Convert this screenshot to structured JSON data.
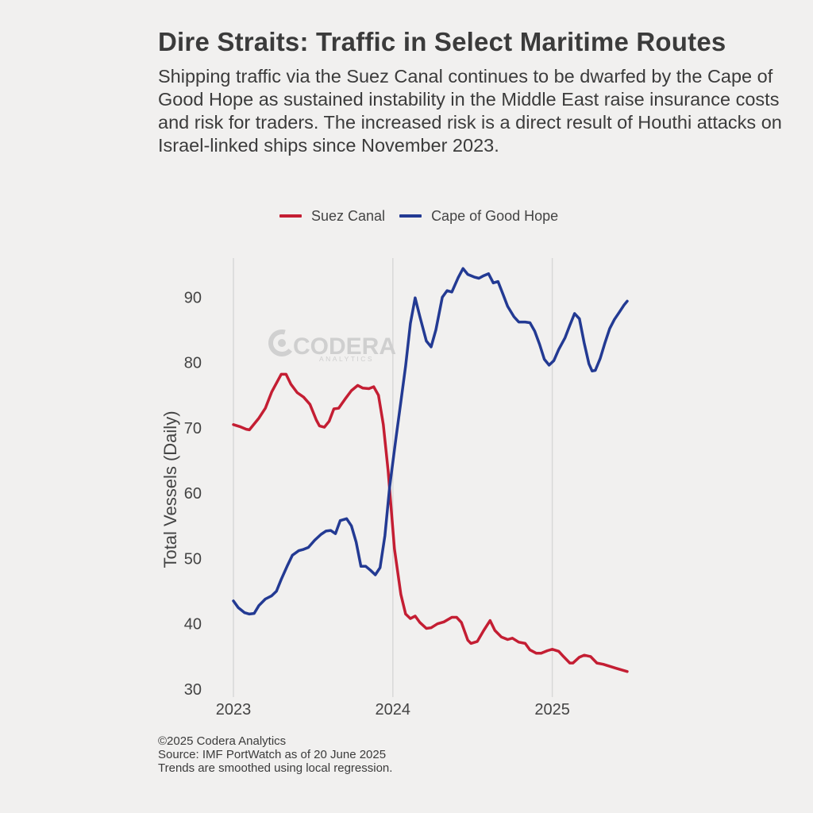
{
  "header": {
    "title": "Dire Straits: Traffic in Select Maritime Routes",
    "subtitle": "Shipping traffic via the Suez Canal continues to be dwarfed by the Cape of Good Hope as sustained instability in the Middle East raise insurance costs and risk for traders. The increased risk is a direct result of Houthi attacks on Israel-linked ships since November 2023."
  },
  "footer": {
    "line1": "©2025 Codera Analytics",
    "line2": "Source: IMF PortWatch as of 20 June 2025",
    "line3": "Trends are smoothed using local regression."
  },
  "watermark": {
    "name": "CODERA",
    "sub": "ANALYTICS",
    "icon": "codera-logo-icon"
  },
  "chart_data": {
    "type": "line",
    "title": "Dire Straits: Traffic in Select Maritime Routes",
    "xlabel": "",
    "ylabel": "Total Vessels (Daily)",
    "xlim": [
      2023,
      2025.47
    ],
    "ylim": [
      30,
      96
    ],
    "xticks": [
      2023,
      2024,
      2025
    ],
    "xtick_labels": [
      "2023",
      "2024",
      "2025"
    ],
    "yticks": [
      30,
      40,
      50,
      60,
      70,
      80,
      90
    ],
    "ytick_labels": [
      "30",
      "40",
      "50",
      "60",
      "70",
      "80",
      "90"
    ],
    "grid": "vertical at year ticks",
    "legend_position": "top-center",
    "series": [
      {
        "name": "Suez Canal",
        "color": "#c41e33",
        "points": [
          [
            2023.0,
            70.5
          ],
          [
            2023.04,
            70.2
          ],
          [
            2023.08,
            69.8
          ],
          [
            2023.1,
            69.7
          ],
          [
            2023.13,
            70.6
          ],
          [
            2023.16,
            71.5
          ],
          [
            2023.2,
            73.0
          ],
          [
            2023.24,
            75.5
          ],
          [
            2023.3,
            78.2
          ],
          [
            2023.33,
            78.2
          ],
          [
            2023.36,
            76.7
          ],
          [
            2023.4,
            75.4
          ],
          [
            2023.44,
            74.7
          ],
          [
            2023.48,
            73.6
          ],
          [
            2023.52,
            71.2
          ],
          [
            2023.54,
            70.3
          ],
          [
            2023.57,
            70.1
          ],
          [
            2023.6,
            71.0
          ],
          [
            2023.63,
            72.9
          ],
          [
            2023.66,
            73.0
          ],
          [
            2023.7,
            74.4
          ],
          [
            2023.74,
            75.7
          ],
          [
            2023.78,
            76.5
          ],
          [
            2023.81,
            76.1
          ],
          [
            2023.85,
            76.0
          ],
          [
            2023.88,
            76.3
          ],
          [
            2023.91,
            75.0
          ],
          [
            2023.94,
            70.5
          ],
          [
            2023.97,
            63.5
          ],
          [
            2024.01,
            51.5
          ],
          [
            2024.05,
            44.5
          ],
          [
            2024.08,
            41.5
          ],
          [
            2024.11,
            40.8
          ],
          [
            2024.14,
            41.2
          ],
          [
            2024.17,
            40.2
          ],
          [
            2024.21,
            39.3
          ],
          [
            2024.24,
            39.4
          ],
          [
            2024.28,
            40.0
          ],
          [
            2024.32,
            40.3
          ],
          [
            2024.37,
            41.0
          ],
          [
            2024.4,
            41.0
          ],
          [
            2024.43,
            40.2
          ],
          [
            2024.47,
            37.5
          ],
          [
            2024.49,
            37.0
          ],
          [
            2024.53,
            37.3
          ],
          [
            2024.57,
            39.0
          ],
          [
            2024.61,
            40.5
          ],
          [
            2024.64,
            39.0
          ],
          [
            2024.68,
            38.0
          ],
          [
            2024.72,
            37.6
          ],
          [
            2024.75,
            37.8
          ],
          [
            2024.79,
            37.2
          ],
          [
            2024.83,
            37.0
          ],
          [
            2024.86,
            36.0
          ],
          [
            2024.9,
            35.5
          ],
          [
            2024.93,
            35.5
          ],
          [
            2024.97,
            35.9
          ],
          [
            2025.0,
            36.1
          ],
          [
            2025.04,
            35.8
          ],
          [
            2025.07,
            35.0
          ],
          [
            2025.11,
            34.0
          ],
          [
            2025.13,
            34.0
          ],
          [
            2025.17,
            34.9
          ],
          [
            2025.2,
            35.2
          ],
          [
            2025.24,
            35.0
          ],
          [
            2025.28,
            34.0
          ],
          [
            2025.32,
            33.8
          ],
          [
            2025.36,
            33.5
          ],
          [
            2025.4,
            33.2
          ],
          [
            2025.44,
            32.9
          ],
          [
            2025.47,
            32.7
          ]
        ]
      },
      {
        "name": "Cape of Good Hope",
        "color": "#233a93",
        "points": [
          [
            2023.0,
            43.5
          ],
          [
            2023.03,
            42.5
          ],
          [
            2023.07,
            41.7
          ],
          [
            2023.1,
            41.5
          ],
          [
            2023.13,
            41.6
          ],
          [
            2023.16,
            42.8
          ],
          [
            2023.2,
            43.8
          ],
          [
            2023.24,
            44.3
          ],
          [
            2023.27,
            45.0
          ],
          [
            2023.3,
            46.8
          ],
          [
            2023.34,
            49.0
          ],
          [
            2023.37,
            50.5
          ],
          [
            2023.41,
            51.2
          ],
          [
            2023.44,
            51.4
          ],
          [
            2023.47,
            51.7
          ],
          [
            2023.51,
            52.8
          ],
          [
            2023.55,
            53.7
          ],
          [
            2023.58,
            54.2
          ],
          [
            2023.61,
            54.3
          ],
          [
            2023.64,
            53.8
          ],
          [
            2023.67,
            55.8
          ],
          [
            2023.71,
            56.1
          ],
          [
            2023.74,
            55.0
          ],
          [
            2023.77,
            52.5
          ],
          [
            2023.8,
            48.8
          ],
          [
            2023.83,
            48.8
          ],
          [
            2023.86,
            48.2
          ],
          [
            2023.89,
            47.5
          ],
          [
            2023.92,
            48.6
          ],
          [
            2023.95,
            53.5
          ],
          [
            2023.98,
            61.0
          ],
          [
            2024.02,
            68.5
          ],
          [
            2024.05,
            74.0
          ],
          [
            2024.08,
            79.5
          ],
          [
            2024.11,
            86.0
          ],
          [
            2024.14,
            89.9
          ],
          [
            2024.17,
            87.0
          ],
          [
            2024.21,
            83.3
          ],
          [
            2024.24,
            82.4
          ],
          [
            2024.27,
            85.0
          ],
          [
            2024.31,
            90.0
          ],
          [
            2024.34,
            91.0
          ],
          [
            2024.37,
            90.8
          ],
          [
            2024.41,
            93.0
          ],
          [
            2024.44,
            94.4
          ],
          [
            2024.47,
            93.5
          ],
          [
            2024.51,
            93.1
          ],
          [
            2024.54,
            92.9
          ],
          [
            2024.57,
            93.3
          ],
          [
            2024.6,
            93.6
          ],
          [
            2024.63,
            92.2
          ],
          [
            2024.66,
            92.4
          ],
          [
            2024.69,
            90.5
          ],
          [
            2024.72,
            88.6
          ],
          [
            2024.76,
            87.0
          ],
          [
            2024.79,
            86.2
          ],
          [
            2024.83,
            86.2
          ],
          [
            2024.86,
            86.1
          ],
          [
            2024.89,
            84.8
          ],
          [
            2024.92,
            82.8
          ],
          [
            2024.95,
            80.5
          ],
          [
            2024.98,
            79.6
          ],
          [
            2025.01,
            80.3
          ],
          [
            2025.04,
            82.0
          ],
          [
            2025.08,
            83.8
          ],
          [
            2025.11,
            85.7
          ],
          [
            2025.14,
            87.5
          ],
          [
            2025.17,
            86.7
          ],
          [
            2025.2,
            83.0
          ],
          [
            2025.23,
            79.8
          ],
          [
            2025.25,
            78.7
          ],
          [
            2025.27,
            78.8
          ],
          [
            2025.3,
            80.6
          ],
          [
            2025.33,
            83.0
          ],
          [
            2025.36,
            85.2
          ],
          [
            2025.39,
            86.6
          ],
          [
            2025.42,
            87.7
          ],
          [
            2025.45,
            88.8
          ],
          [
            2025.47,
            89.4
          ]
        ]
      }
    ]
  }
}
